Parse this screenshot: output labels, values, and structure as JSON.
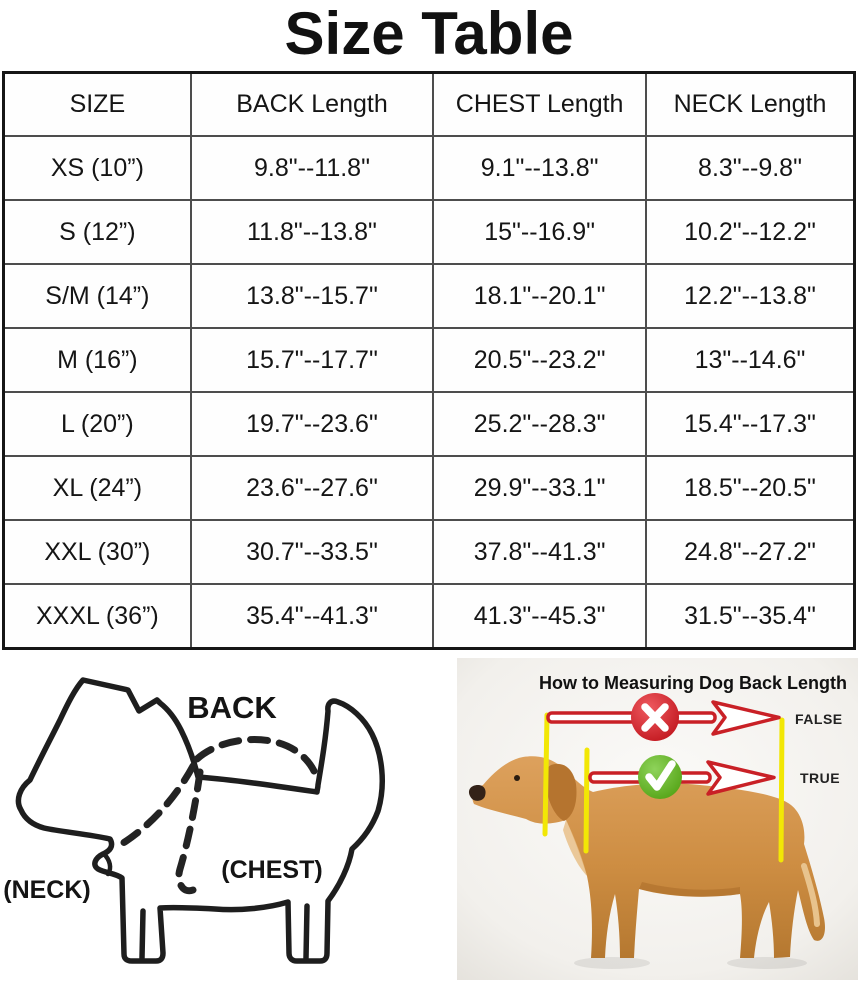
{
  "title": "Size Table",
  "table": {
    "headers": [
      "SIZE",
      "BACK Length",
      "CHEST Length",
      "NECK Length"
    ],
    "rows": [
      [
        "XS (10”)",
        "9.8\"--11.8\"",
        "9.1\"--13.8\"",
        "8.3\"--9.8\""
      ],
      [
        "S (12”)",
        "11.8\"--13.8\"",
        "15\"--16.9\"",
        "10.2\"--12.2\""
      ],
      [
        "S/M (14”)",
        "13.8\"--15.7\"",
        "18.1\"--20.1\"",
        "12.2\"--13.8\""
      ],
      [
        "M (16”)",
        "15.7\"--17.7\"",
        "20.5\"--23.2\"",
        "13\"--14.6\""
      ],
      [
        "L (20”)",
        "19.7\"--23.6\"",
        "25.2\"--28.3\"",
        "15.4\"--17.3\""
      ],
      [
        "XL (24”)",
        "23.6\"--27.6\"",
        "29.9\"--33.1\"",
        "18.5\"--20.5\""
      ],
      [
        "XXL (30”)",
        "30.7\"--33.5\"",
        "37.8\"--41.3\"",
        "24.8\"--27.2\""
      ],
      [
        "XXXL (36”)",
        "35.4\"--41.3\"",
        "41.3\"--45.3\"",
        "31.5\"--35.4\""
      ]
    ]
  },
  "diagram": {
    "back_label": "BACK",
    "chest_label": "(CHEST)",
    "neck_label": "(NECK)"
  },
  "photo": {
    "title": "How to Measuring Dog Back Length",
    "false_label": "FALSE",
    "true_label": "TRUE"
  },
  "colors": {
    "ink": "#1a1a1a",
    "table_border": "#4d4d4d",
    "arrow_red": "#c92026",
    "cross_red": "#d62b31",
    "check_green": "#65b42d",
    "measure_yellow": "#f2e705",
    "dog_gold": "#cf9148"
  }
}
